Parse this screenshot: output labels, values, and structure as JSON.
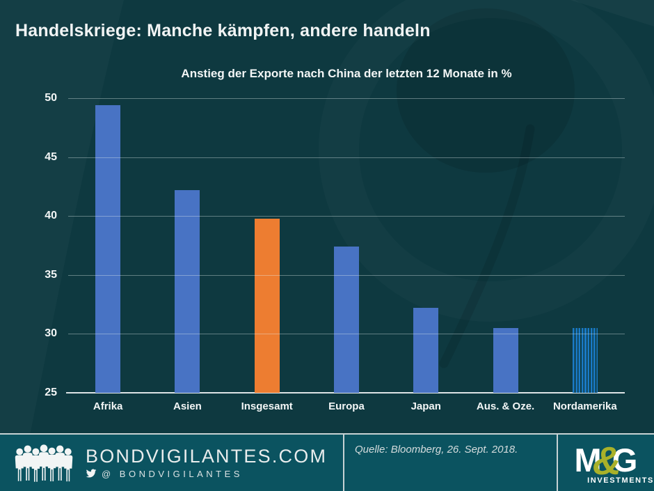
{
  "title": "Handelskriege: Manche kämpfen, andere handeln",
  "chart_data": {
    "type": "bar",
    "title": "Anstieg der Exporte nach China der letzten 12 Monate in %",
    "categories": [
      "Afrika",
      "Asien",
      "Insgesamt",
      "Europa",
      "Japan",
      "Aus. & Oze.",
      "Nordamerika"
    ],
    "values": [
      49.4,
      42.2,
      39.8,
      37.4,
      32.2,
      30.5,
      30.5
    ],
    "bar_styles": [
      "solid-blue",
      "solid-blue",
      "solid-orange",
      "solid-blue",
      "solid-blue",
      "solid-blue",
      "striped-blue"
    ],
    "ylim": [
      25,
      50
    ],
    "yticks": [
      25,
      30,
      35,
      40,
      45,
      50
    ],
    "grid": true,
    "legend": false,
    "colors": {
      "blue": "#4873c4",
      "orange": "#ed7d31",
      "striped_blue": "#1a7ac6",
      "stripe_gap": "#0d3a42"
    }
  },
  "footer": {
    "site": "BONDVIGILANTES.COM",
    "twitter": "@ BONDVIGILANTES",
    "source": "Quelle: Bloomberg, 26. Sept. 2018.",
    "brand": {
      "m": "M",
      "amp": "&",
      "g": "G",
      "sub": "INVESTMENTS",
      "green": "#a9b129"
    }
  }
}
